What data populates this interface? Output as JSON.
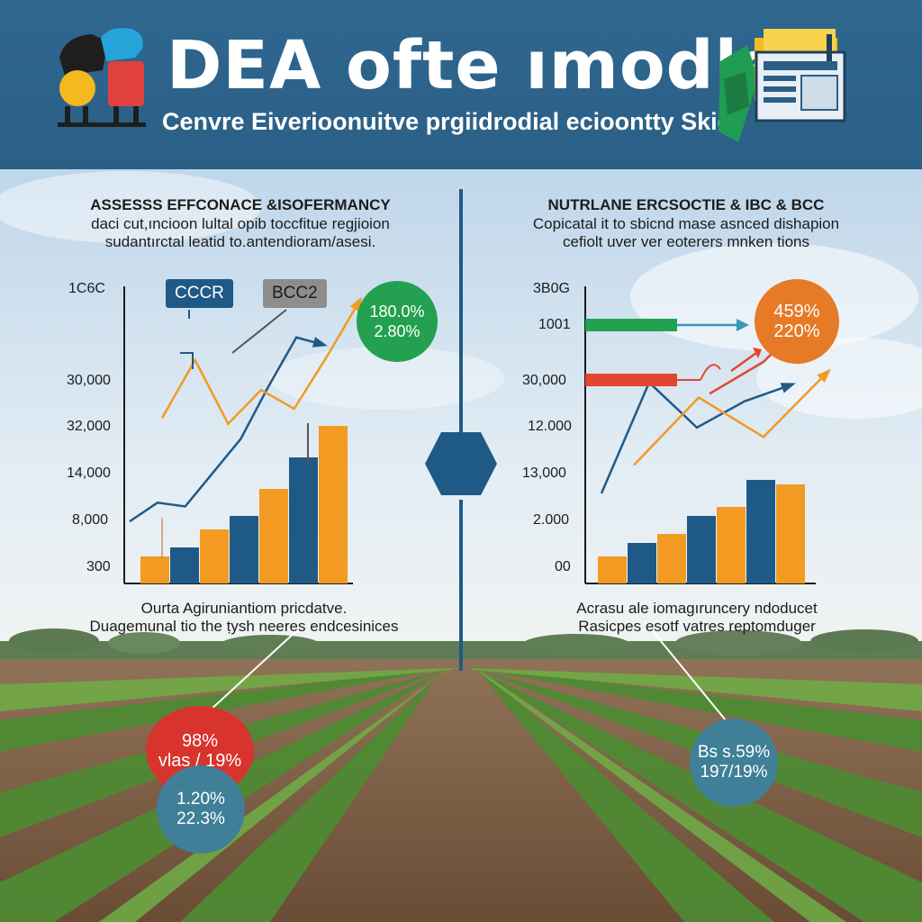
{
  "header": {
    "title": "DEA ofte ımodls",
    "subtitle": "Cenvre Eiverioonuitve prgiidrodial eciоontty Skies"
  },
  "left_panel": {
    "title": "ASSESSS EFFCONACE &ISOFERMANCY",
    "line1": "daci cut,ıncioon lultal opib toccfitue regjioion",
    "line2": "sudantırctal leatid to.antendioram/asesi.",
    "yticks": [
      "1C6C",
      "30,000",
      "32,000",
      "14,000",
      "8,000",
      "300"
    ],
    "tags": {
      "a": "CCCR",
      "b": "BCC2"
    },
    "badge": {
      "line1": "180.0%",
      "line2": "2.80%"
    },
    "caption1": "Ourta Agiruniantiom pricdatve.",
    "caption2": "Duagemunal tio the ṭysh neeres endcesinices"
  },
  "right_panel": {
    "title": "NUTRLANE ERCSOCTIE & IBC & BCC",
    "line1": "Copicatal it to sbicnd mase asnced dishapion",
    "line2": "cefiolt uver ver eoterers mnken tions",
    "yticks": [
      "3B0G",
      "1001",
      "30,000",
      "12.000",
      "13,000",
      "2.000",
      "00"
    ],
    "badge": {
      "line1": "459%",
      "line2": "220%"
    },
    "caption1": "Acrasu ale iomagıruncery ndoducet",
    "caption2": "Rasicpes esotf vatres reptomduger"
  },
  "bottom_circles": {
    "red": {
      "line1": "98%",
      "line2": "vlas / 19%"
    },
    "teal_left": {
      "line1": "1.20%",
      "line2": "22.3%"
    },
    "teal_right": {
      "line1": "Bs s.59%",
      "line2": "197/19%"
    }
  },
  "colors": {
    "header": "#2f6790",
    "navy": "#1f5a87",
    "orange": "#f29a22",
    "green": "#23a150",
    "red": "#e2462f",
    "teal": "#3f7f98",
    "badge_orange": "#e67a26"
  },
  "chart_data": [
    {
      "type": "bar",
      "categories": [
        "1",
        "2",
        "3",
        "4",
        "5",
        "6",
        "7"
      ],
      "values": [
        1.2,
        1.6,
        2.4,
        3.0,
        4.2,
        5.6,
        7.0
      ],
      "ylim": [
        0,
        8
      ],
      "line_series": [
        {
          "name": "",
          "color": "navy",
          "values": [
            1,
            2,
            1.8,
            3.6,
            5.4,
            8.2,
            10.8,
            10.4
          ]
        },
        {
          "name": "",
          "color": "orange",
          "values": [
            6.5,
            9.6,
            6.2,
            8.0,
            7.0,
            9.8,
            12.8
          ]
        }
      ]
    },
    {
      "type": "bar",
      "categories": [
        "1",
        "2",
        "3",
        "4",
        "5",
        "6",
        "7"
      ],
      "values": [
        1.2,
        1.8,
        2.2,
        3.0,
        3.4,
        4.6,
        4.4
      ],
      "ylim": [
        0,
        8
      ],
      "line_series": [
        {
          "name": "",
          "color": "navy",
          "values": [
            2.5,
            8.4,
            6.0,
            7.4,
            8.3
          ]
        },
        {
          "name": "",
          "color": "orange",
          "values": [
            4.0,
            7.6,
            5.5,
            9.0
          ]
        },
        {
          "name": "",
          "color": "red",
          "values": [
            7.8,
            9.5,
            12.4
          ]
        }
      ]
    }
  ]
}
